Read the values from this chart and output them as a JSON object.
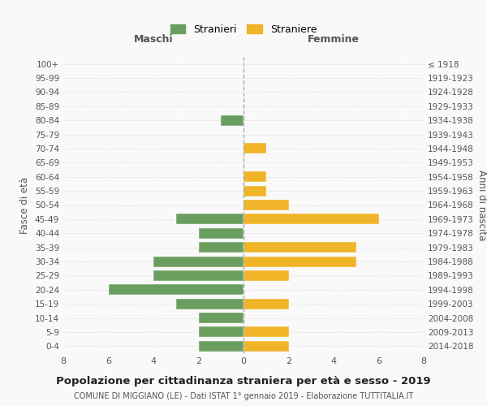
{
  "age_groups": [
    "0-4",
    "5-9",
    "10-14",
    "15-19",
    "20-24",
    "25-29",
    "30-34",
    "35-39",
    "40-44",
    "45-49",
    "50-54",
    "55-59",
    "60-64",
    "65-69",
    "70-74",
    "75-79",
    "80-84",
    "85-89",
    "90-94",
    "95-99",
    "100+"
  ],
  "birth_years": [
    "2014-2018",
    "2009-2013",
    "2004-2008",
    "1999-2003",
    "1994-1998",
    "1989-1993",
    "1984-1988",
    "1979-1983",
    "1974-1978",
    "1969-1973",
    "1964-1968",
    "1959-1963",
    "1954-1958",
    "1949-1953",
    "1944-1948",
    "1939-1943",
    "1934-1938",
    "1929-1933",
    "1924-1928",
    "1919-1923",
    "≤ 1918"
  ],
  "males": [
    2,
    2,
    2,
    3,
    6,
    4,
    4,
    2,
    2,
    3,
    0,
    0,
    0,
    0,
    0,
    0,
    1,
    0,
    0,
    0,
    0
  ],
  "females": [
    2,
    2,
    0,
    2,
    0,
    2,
    5,
    5,
    0,
    6,
    2,
    1,
    1,
    0,
    1,
    0,
    0,
    0,
    0,
    0,
    0
  ],
  "male_color": "#6a9e5f",
  "female_color": "#f0b429",
  "male_label": "Stranieri",
  "female_label": "Straniere",
  "xlim": 8,
  "title": "Popolazione per cittadinanza straniera per età e sesso - 2019",
  "subtitle": "COMUNE DI MIGGIANO (LE) - Dati ISTAT 1° gennaio 2019 - Elaborazione TUTTITALIA.IT",
  "ylabel_left": "Fasce di età",
  "ylabel_right": "Anni di nascita",
  "xlabel_left": "Maschi",
  "xlabel_right": "Femmine",
  "background_color": "#f9f9f9",
  "grid_color": "#d8d8d8"
}
